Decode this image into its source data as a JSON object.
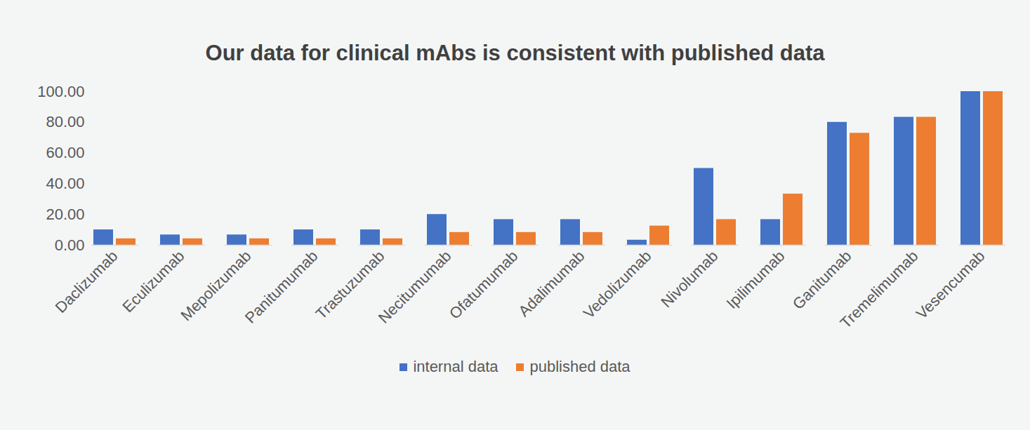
{
  "chart_data": {
    "type": "bar",
    "title": "Our data for clinical mAbs is consistent with published data",
    "categories": [
      "Daclizumab",
      "Eculizumab",
      "Mepolizumab",
      "Panitumumab",
      "Trastuzumab",
      "Necitumumab",
      "Ofatumumab",
      "Adalimumab",
      "Vedolizumab",
      "Nivolumab",
      "Ipilimumab",
      "Ganitumab",
      "Tremelimumab",
      "Vesencumab"
    ],
    "series": [
      {
        "name": "internal data",
        "color": "#4472c4",
        "values": [
          10,
          6.7,
          6.7,
          10,
          10,
          20,
          16.7,
          16.7,
          3.3,
          50,
          16.7,
          80,
          83.3,
          100
        ]
      },
      {
        "name": "published data",
        "color": "#ed7d31",
        "values": [
          4.2,
          4.2,
          4.2,
          4.2,
          4.2,
          8.3,
          8.3,
          8.3,
          12.5,
          16.7,
          33.3,
          72.9,
          83.3,
          100
        ]
      }
    ],
    "ylim": [
      0,
      100
    ],
    "yticks": [
      {
        "value": 0,
        "label": "0.00"
      },
      {
        "value": 20,
        "label": "20.00"
      },
      {
        "value": 40,
        "label": "40.00"
      },
      {
        "value": 60,
        "label": "60.00"
      },
      {
        "value": 80,
        "label": "80.00"
      },
      {
        "value": 100,
        "label": "100.00"
      }
    ],
    "grid": false,
    "legend": "bottom"
  }
}
